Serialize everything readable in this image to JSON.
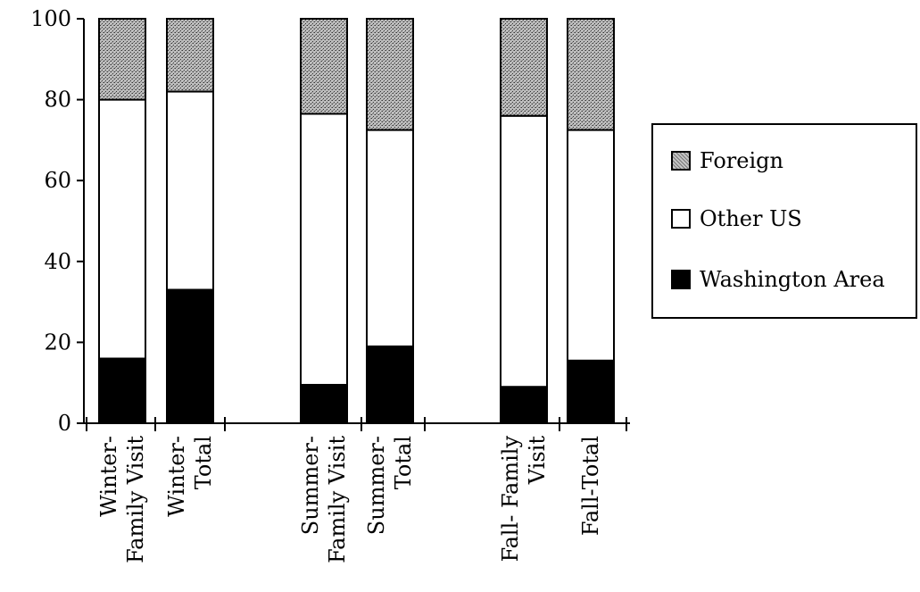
{
  "chart_data": {
    "type": "bar",
    "stacked": true,
    "categories": [
      [
        "Winter-",
        "Family Visit"
      ],
      [
        "Winter-",
        "Total"
      ],
      [
        "Summer-",
        "Family Visit"
      ],
      [
        "Summer-",
        "Total"
      ],
      [
        "Fall- Family",
        "Visit"
      ],
      [
        "Fall-Total"
      ]
    ],
    "series": [
      {
        "name": "Washington Area",
        "values": [
          16,
          33,
          9.5,
          19,
          9,
          15.5
        ],
        "color": "#000000"
      },
      {
        "name": "Other US",
        "values": [
          64,
          49,
          67,
          53.5,
          67,
          57
        ],
        "color": "#ffffff"
      },
      {
        "name": "Foreign",
        "values": [
          20,
          18,
          23.5,
          27.5,
          24,
          27.5
        ],
        "color": "#9a9a9a",
        "pattern": "stipple"
      }
    ],
    "ylim": [
      0,
      100
    ],
    "yticks": [
      "0",
      "20",
      "40",
      "60",
      "80",
      "100"
    ],
    "legend": {
      "position": "right",
      "items": [
        "Foreign",
        "Other US",
        "Washington Area"
      ]
    },
    "grid": false
  }
}
